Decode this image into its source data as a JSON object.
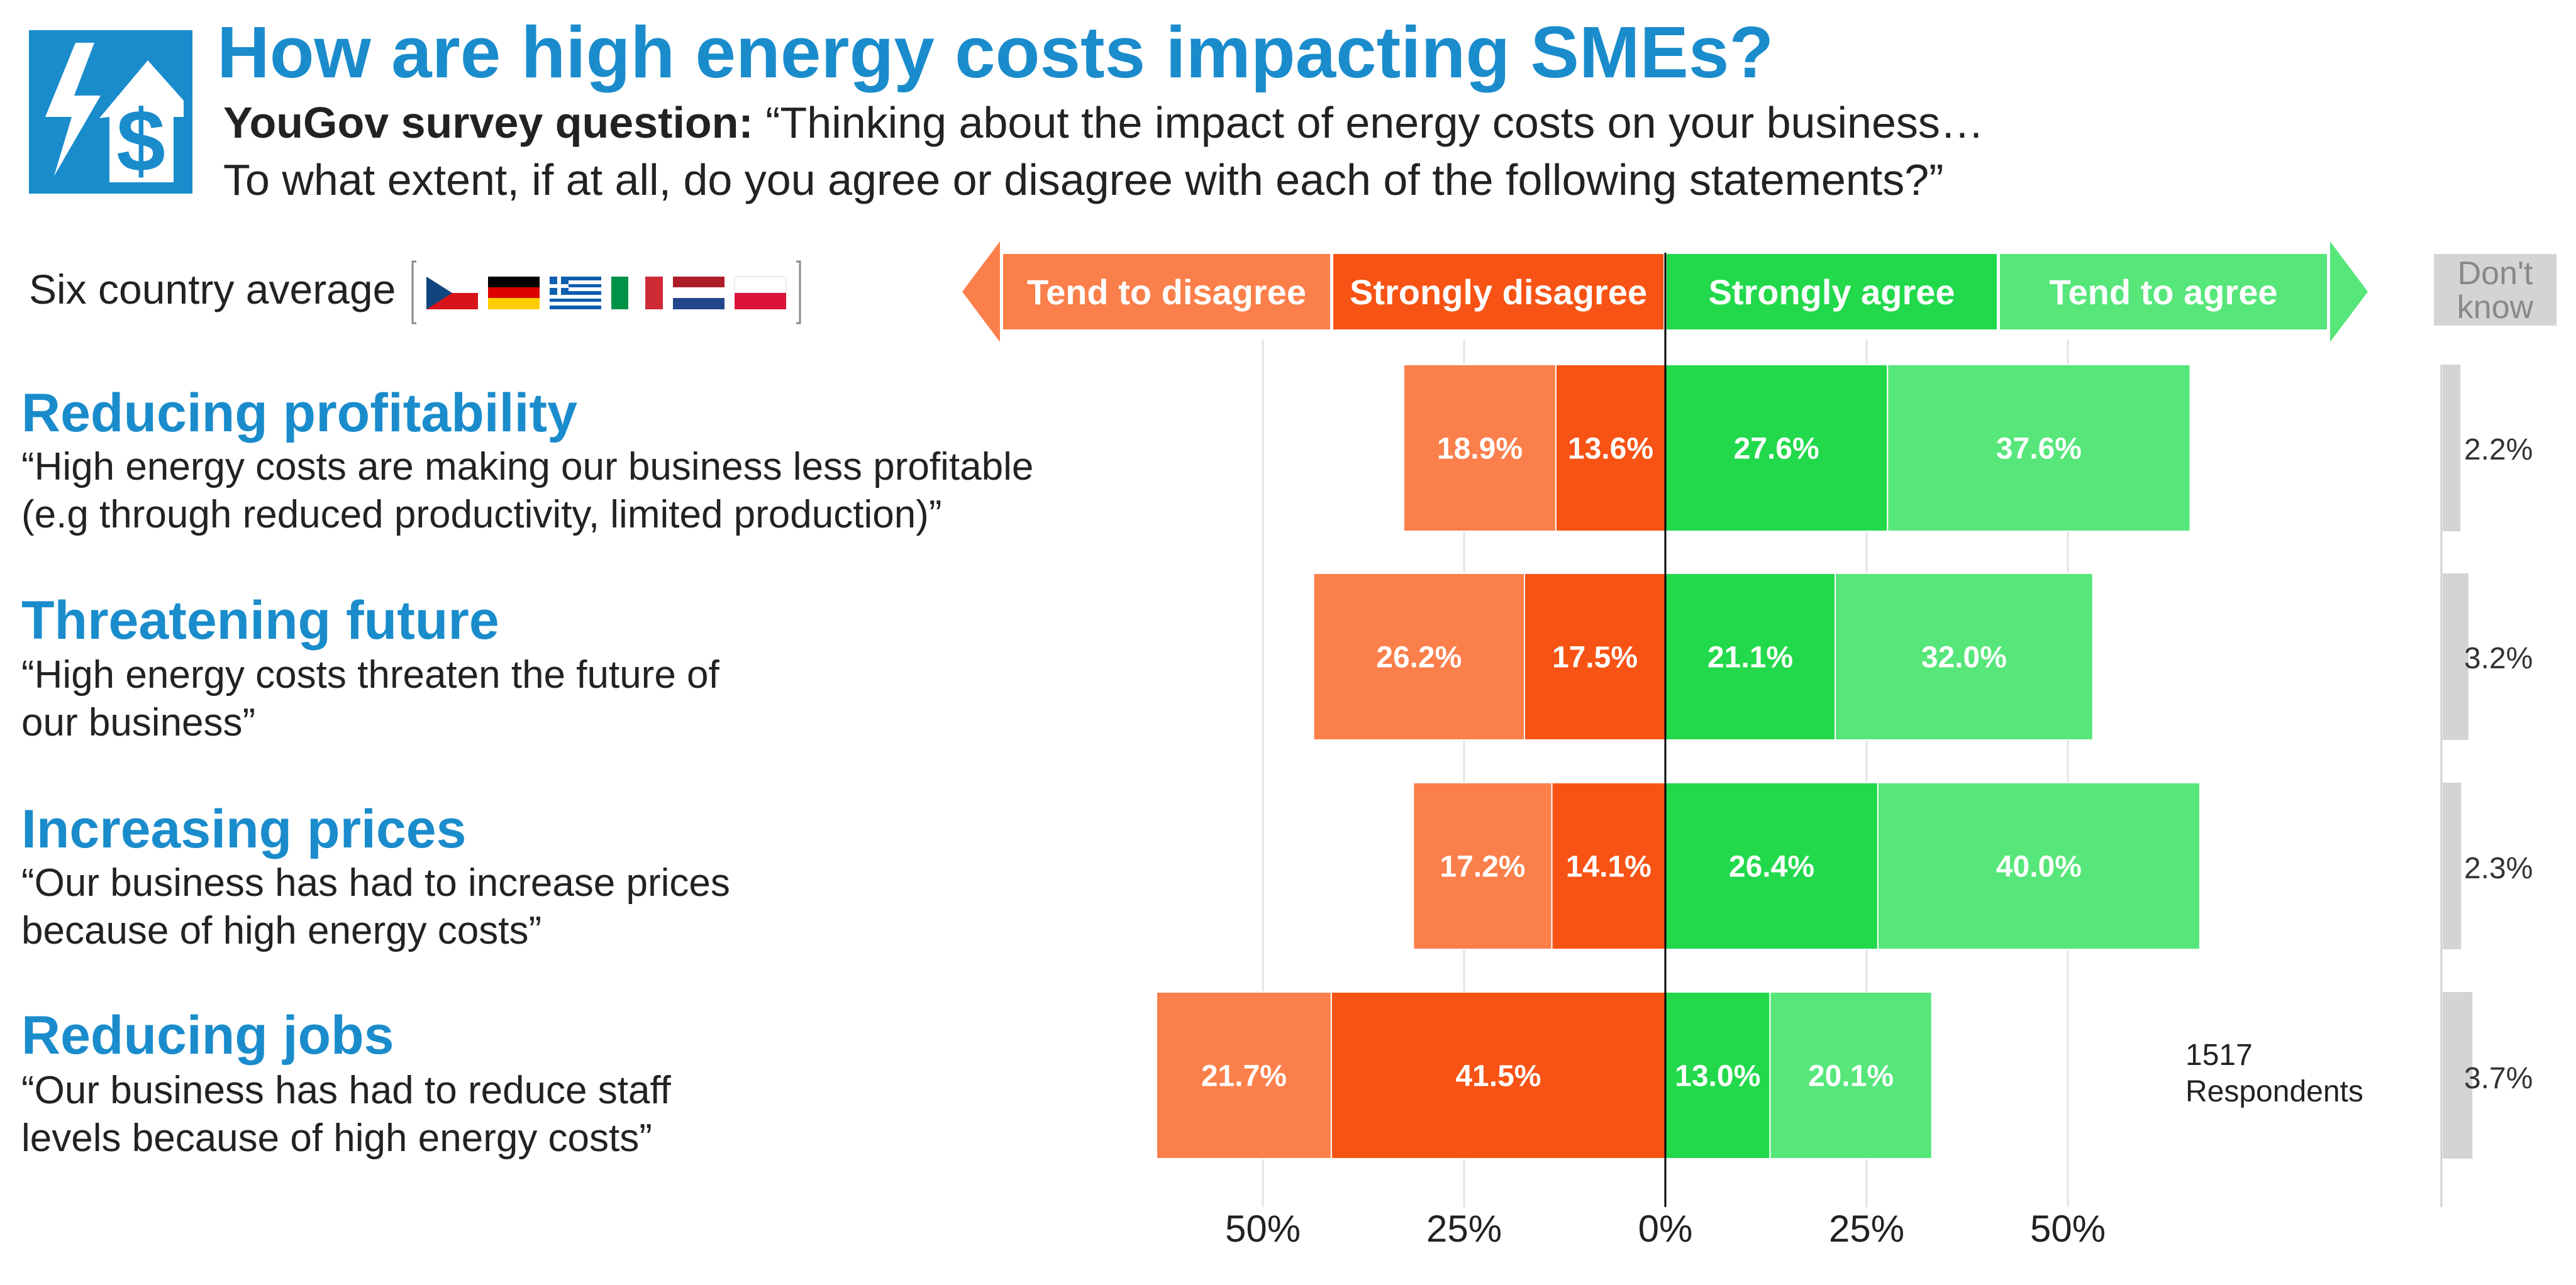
{
  "title": "How are high energy costs impacting SMEs?",
  "question": {
    "prefix": "YouGov survey question:",
    "line1": "“Thinking about the impact of energy costs on your business…",
    "line2": "To what extent, if at all, do you agree or disagree with each of the following statements?”"
  },
  "legend": {
    "label": "Six country average",
    "flags": [
      "czech-flag",
      "german-flag",
      "greek-flag",
      "italian-flag",
      "dutch-flag",
      "polish-flag"
    ]
  },
  "scale": {
    "tend_disagree": "Tend to disagree",
    "strongly_disagree": "Strongly disagree",
    "strongly_agree": "Strongly agree",
    "tend_agree": "Tend to agree",
    "dont_know": "Don't know"
  },
  "colors": {
    "tend_disagree": "#fb7f4b",
    "strongly_disagree": "#f75314",
    "strongly_agree": "#22d94b",
    "tend_agree": "#56e67a",
    "dont_know": "#d4d4d4",
    "title": "#1a8ccc"
  },
  "rows": [
    {
      "title": "Reducing profitability",
      "desc1": "“High energy costs are making our business less profitable",
      "desc2": "(e.g through reduced productivity, limited production)”",
      "dk_label": "2.2%"
    },
    {
      "title": "Threatening future",
      "desc1": "“High energy costs threaten the future of",
      "desc2": "our business”",
      "dk_label": "3.2%"
    },
    {
      "title": "Increasing prices",
      "desc1": "“Our business has had to increase prices",
      "desc2": "because of high energy costs”",
      "dk_label": "2.3%"
    },
    {
      "title": "Reducing jobs",
      "desc1": "“Our business has had to reduce staff",
      "desc2": "levels because of high energy costs”",
      "dk_label": "3.7%"
    }
  ],
  "axis_ticks": [
    "50%",
    "25%",
    "0%",
    "25%",
    "50%"
  ],
  "note": {
    "line1": "1517",
    "line2": "Respondents"
  },
  "chart_data": {
    "type": "bar",
    "orientation": "horizontal-diverging",
    "categories": [
      "Reducing profitability",
      "Threatening future",
      "Increasing prices",
      "Reducing jobs"
    ],
    "series": [
      {
        "name": "Tend to disagree",
        "side": "left",
        "values": [
          18.9,
          26.2,
          17.2,
          21.7
        ]
      },
      {
        "name": "Strongly disagree",
        "side": "left",
        "values": [
          13.6,
          17.5,
          14.1,
          41.5
        ]
      },
      {
        "name": "Strongly agree",
        "side": "right",
        "values": [
          27.6,
          21.1,
          26.4,
          13.0
        ]
      },
      {
        "name": "Tend to agree",
        "side": "right",
        "values": [
          37.6,
          32.0,
          40.0,
          20.1
        ]
      },
      {
        "name": "Don't know",
        "values": [
          2.2,
          3.2,
          2.3,
          3.7
        ]
      }
    ],
    "xlim": [
      -60,
      60
    ],
    "gridlines": [
      -50,
      -25,
      0,
      25,
      50
    ],
    "unit": "%"
  }
}
